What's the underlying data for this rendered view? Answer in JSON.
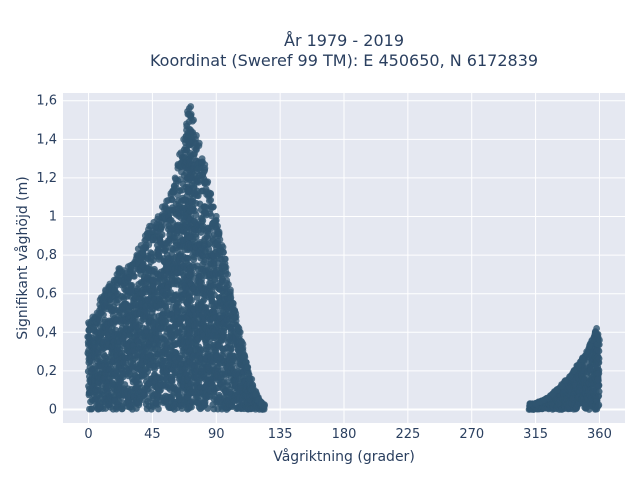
{
  "chart_data": {
    "type": "scatter",
    "title_line1": "År 1979 - 2019",
    "title_line2": "Koordinat (Sweref 99 TM): E 450650, N 6172839",
    "xlabel": "Vågriktning (grader)",
    "ylabel": "Signifikant våghöjd (m)",
    "xlim": [
      -18,
      378
    ],
    "ylim": [
      -0.07,
      1.64
    ],
    "x_ticks": [
      0,
      45,
      90,
      135,
      180,
      225,
      270,
      315,
      360
    ],
    "x_tick_labels": [
      "0",
      "45",
      "90",
      "135",
      "180",
      "225",
      "270",
      "315",
      "360"
    ],
    "y_ticks": [
      0,
      0.2,
      0.4,
      0.6,
      0.8,
      1.0,
      1.2,
      1.4,
      1.6
    ],
    "y_tick_labels": [
      "0",
      "0,2",
      "0,4",
      "0,6",
      "0,8",
      "1",
      "1,2",
      "1,4",
      "1,6"
    ],
    "grid": true,
    "marker_color": "#2f5570",
    "background_color": "#e5e8f1",
    "series": [
      {
        "envelope": [
          [
            0,
            0.45
          ],
          [
            3,
            0.48
          ],
          [
            6,
            0.5
          ],
          [
            9,
            0.58
          ],
          [
            12,
            0.62
          ],
          [
            15,
            0.65
          ],
          [
            18,
            0.67
          ],
          [
            20,
            0.7
          ],
          [
            22,
            0.73
          ],
          [
            25,
            0.72
          ],
          [
            28,
            0.74
          ],
          [
            31,
            0.75
          ],
          [
            34,
            0.8
          ],
          [
            37,
            0.85
          ],
          [
            40,
            0.9
          ],
          [
            43,
            0.95
          ],
          [
            46,
            0.97
          ],
          [
            49,
            1.0
          ],
          [
            52,
            1.05
          ],
          [
            55,
            1.08
          ],
          [
            58,
            1.12
          ],
          [
            61,
            1.2
          ],
          [
            63,
            1.27
          ],
          [
            65,
            1.33
          ],
          [
            67,
            1.4
          ],
          [
            69,
            1.48
          ],
          [
            70,
            1.53
          ],
          [
            71,
            1.56
          ],
          [
            72,
            1.57
          ],
          [
            74,
            1.5
          ],
          [
            76,
            1.42
          ],
          [
            78,
            1.38
          ],
          [
            80,
            1.3
          ],
          [
            82,
            1.25
          ],
          [
            84,
            1.18
          ],
          [
            86,
            1.12
          ],
          [
            88,
            1.05
          ],
          [
            90,
            0.98
          ],
          [
            92,
            0.92
          ],
          [
            94,
            0.85
          ],
          [
            96,
            0.78
          ],
          [
            98,
            0.7
          ],
          [
            100,
            0.62
          ],
          [
            102,
            0.55
          ],
          [
            104,
            0.48
          ],
          [
            106,
            0.42
          ],
          [
            108,
            0.35
          ],
          [
            110,
            0.28
          ],
          [
            112,
            0.22
          ],
          [
            114,
            0.16
          ],
          [
            116,
            0.11
          ],
          [
            118,
            0.08
          ],
          [
            120,
            0.05
          ],
          [
            122,
            0.03
          ],
          [
            124,
            0.02
          ]
        ]
      },
      {
        "envelope": [
          [
            311,
            0.03
          ],
          [
            315,
            0.03
          ],
          [
            318,
            0.04
          ],
          [
            321,
            0.05
          ],
          [
            324,
            0.06
          ],
          [
            327,
            0.08
          ],
          [
            330,
            0.1
          ],
          [
            333,
            0.12
          ],
          [
            336,
            0.15
          ],
          [
            339,
            0.17
          ],
          [
            342,
            0.2
          ],
          [
            345,
            0.23
          ],
          [
            348,
            0.26
          ],
          [
            351,
            0.3
          ],
          [
            353,
            0.33
          ],
          [
            355,
            0.36
          ],
          [
            357,
            0.4
          ],
          [
            358,
            0.42
          ],
          [
            359,
            0.39
          ],
          [
            360,
            0.36
          ]
        ]
      }
    ]
  }
}
